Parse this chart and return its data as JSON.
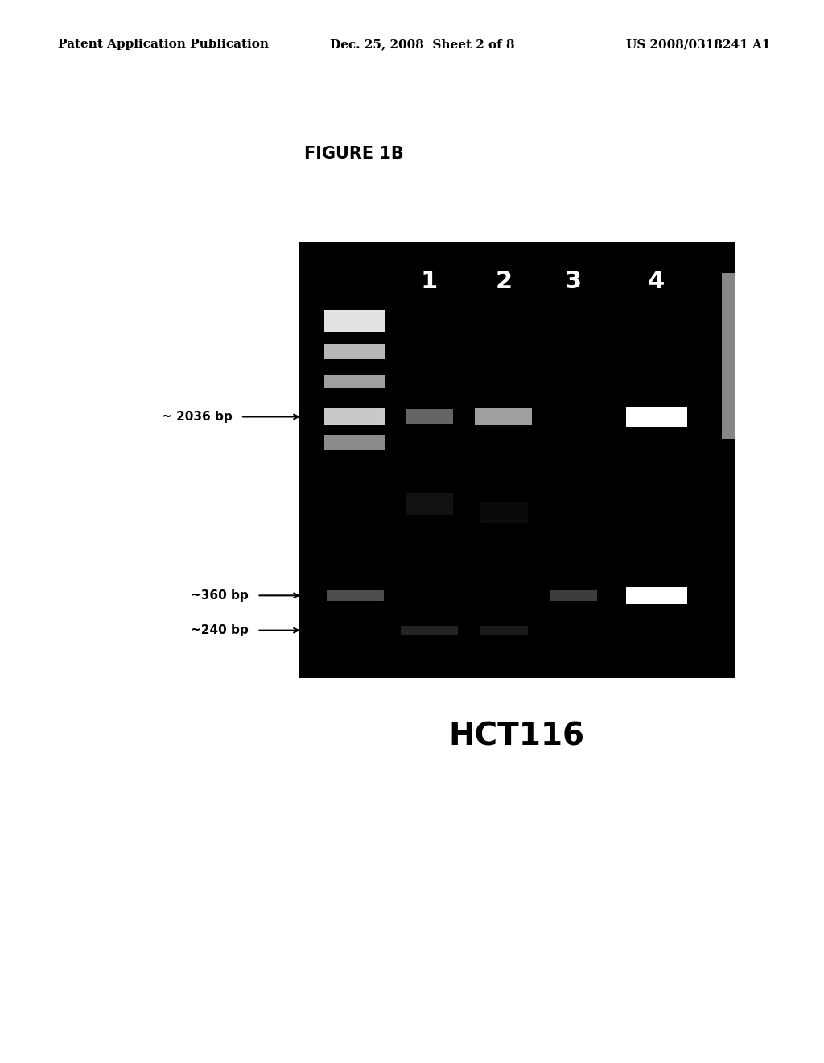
{
  "fig_width": 10.24,
  "fig_height": 13.2,
  "bg_color": "#ffffff",
  "header_left": "Patent Application Publication",
  "header_center": "Dec. 25, 2008  Sheet 2 of 8",
  "header_right": "US 2008/0318241 A1",
  "figure_title": "FIGURE 1B",
  "gel_label": "HCT116",
  "lane_labels": [
    "1",
    "2",
    "3",
    "4"
  ],
  "lane_label_color": "#ffffff",
  "lane_label_fontsize": 22,
  "marker_label_2036": "~ 2036 bp",
  "marker_label_360": "~360 bp",
  "marker_label_240": "~240 bp",
  "marker_fontsize": 11,
  "gel_label_fontsize": 28,
  "header_fontsize": 11
}
